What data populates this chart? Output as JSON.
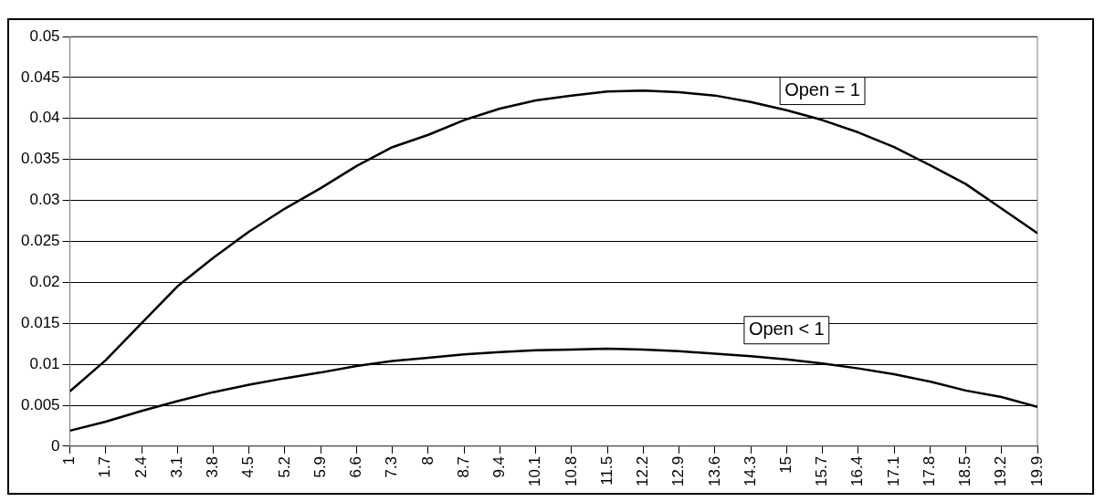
{
  "chart_data": {
    "type": "line",
    "xlim": [
      1,
      19.9
    ],
    "ylim": [
      0,
      0.05
    ],
    "xticks": [
      1,
      1.7,
      2.4,
      3.1,
      3.8,
      4.5,
      5.2,
      5.9,
      6.6,
      7.3,
      8,
      8.7,
      9.4,
      10.1,
      10.8,
      11.5,
      12.2,
      12.9,
      13.6,
      14.3,
      15,
      15.7,
      16.4,
      17.1,
      17.8,
      18.5,
      19.2,
      19.9
    ],
    "yticks": [
      0,
      0.005,
      0.01,
      0.015,
      0.02,
      0.025,
      0.03,
      0.035,
      0.04,
      0.045,
      0.05
    ],
    "grid": "y",
    "legend": false,
    "marker": "none",
    "line_style": "solid",
    "x": [
      1,
      1.7,
      2.4,
      3.1,
      3.8,
      4.5,
      5.2,
      5.9,
      6.6,
      7.3,
      8,
      8.7,
      9.4,
      10.1,
      10.8,
      11.5,
      12.2,
      12.9,
      13.6,
      14.3,
      15,
      15.7,
      16.4,
      17.1,
      17.8,
      18.5,
      19.2,
      19.9
    ],
    "series": [
      {
        "name": "Open = 1",
        "color": "#000000",
        "values": [
          0.0067,
          0.0105,
          0.015,
          0.0195,
          0.023,
          0.0262,
          0.029,
          0.0315,
          0.0342,
          0.0365,
          0.038,
          0.0398,
          0.0412,
          0.0422,
          0.0428,
          0.0433,
          0.0434,
          0.0432,
          0.0428,
          0.042,
          0.041,
          0.0398,
          0.0383,
          0.0365,
          0.0343,
          0.032,
          0.029,
          0.026
        ]
      },
      {
        "name": "Open < 1",
        "color": "#000000",
        "values": [
          0.0019,
          0.003,
          0.0043,
          0.0055,
          0.0066,
          0.0075,
          0.0083,
          0.009,
          0.0098,
          0.0104,
          0.0108,
          0.0112,
          0.0115,
          0.0117,
          0.0118,
          0.0119,
          0.0118,
          0.0116,
          0.0113,
          0.011,
          0.0106,
          0.0101,
          0.0095,
          0.0088,
          0.0079,
          0.0068,
          0.006,
          0.0048
        ]
      }
    ]
  }
}
